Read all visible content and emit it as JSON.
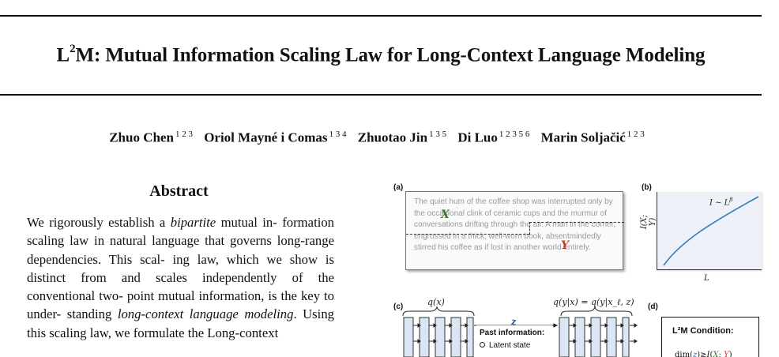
{
  "paper": {
    "title_prefix": "L",
    "title_superscript": "2",
    "title_rest": "M: Mutual Information Scaling Law for Long-Context Language Modeling",
    "authors": [
      {
        "name": "Zhuo Chen",
        "affiliations": "1 2 3"
      },
      {
        "name": "Oriol Mayné i Comas",
        "affiliations": "1 3 4"
      },
      {
        "name": "Zhuotao Jin",
        "affiliations": "1 3 5"
      },
      {
        "name": "Di Luo",
        "affiliations": "1 2 3 5 6"
      },
      {
        "name": "Marin Soljačić",
        "affiliations": "1 2 3"
      }
    ],
    "abstract": {
      "heading": "Abstract",
      "lines": [
        "We rigorously establish a",
        "bipartite",
        "mutual in-",
        "formation scaling law in natural language that",
        "governs long-range dependencies.  This scal-",
        "ing law, which we show is distinct from and",
        "scales independently of the conventional two-",
        "point mutual information, is the key to under-",
        "standing",
        "long-context language modeling",
        ". Using",
        "this scaling law, we formulate the Long-context"
      ]
    }
  },
  "figure": {
    "panel_labels": {
      "a": "(a)",
      "b": "(b)",
      "c": "(c)",
      "d": "(d)"
    },
    "panel_a": {
      "text": "The quiet hum of the coffee shop was interrupted only by the occasional clink of ceramic cups and the murmur of conversations drifting through the air. A man in the corner, engrossed in a thick, well-worn book, absentmindedly stirred his coffee as if lost in another world entirely.",
      "x_label": "X",
      "y_label": "Y"
    },
    "panel_b": {
      "formula": "I ∼ L^β",
      "formula_base": "I ∼ L",
      "formula_exp": "β",
      "y_axis_label": "I(X; Y)",
      "x_axis_label": "L",
      "line_color": "#2e7cb8"
    },
    "panel_c": {
      "left_label": "q(x)",
      "right_label": "q(y|x) = q(y|x_ℓ, z)",
      "z_label": "z",
      "past_information_title": "Past information:",
      "past_information_item": "Latent state"
    },
    "panel_d": {
      "title": "L²M Condition:",
      "formula": "dim(z) ≳ I(X; Y)"
    }
  }
}
